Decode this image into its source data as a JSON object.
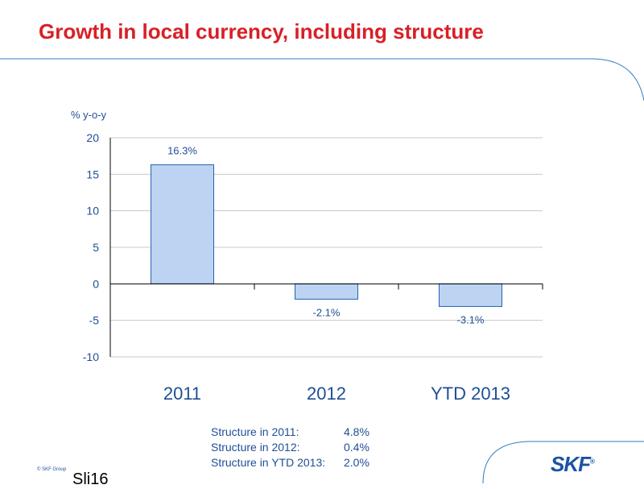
{
  "slide": {
    "title": "Growth in local currency, including structure",
    "copyright": "© SKF Group",
    "slide_number": "Sli16",
    "logo_text": "SKF",
    "logo_mark": "®"
  },
  "colors": {
    "title": "#d91f26",
    "bar_fill": "#bcd4f2",
    "bar_stroke": "#2a5fb0",
    "text_blue": "#1f4e96",
    "accent_line": "#2e7cc4"
  },
  "chart_data": {
    "type": "bar",
    "title": "",
    "xlabel": "",
    "ylabel": "% y-o-y",
    "categories": [
      "2011",
      "2012",
      "YTD 2013"
    ],
    "values": [
      16.3,
      -2.1,
      -3.1
    ],
    "data_labels": [
      "16.3%",
      "-2.1%",
      "-3.1%"
    ],
    "ylim": [
      -10,
      20
    ],
    "yticks": [
      -10,
      -5,
      0,
      5,
      10,
      15,
      20
    ],
    "grid": true,
    "legend": "none"
  },
  "notes": [
    {
      "label": "Structure in 2011:",
      "value": "4.8%"
    },
    {
      "label": "Structure in 2012:",
      "value": "0.4%"
    },
    {
      "label": "Structure in YTD 2013:",
      "value": "2.0%"
    }
  ]
}
